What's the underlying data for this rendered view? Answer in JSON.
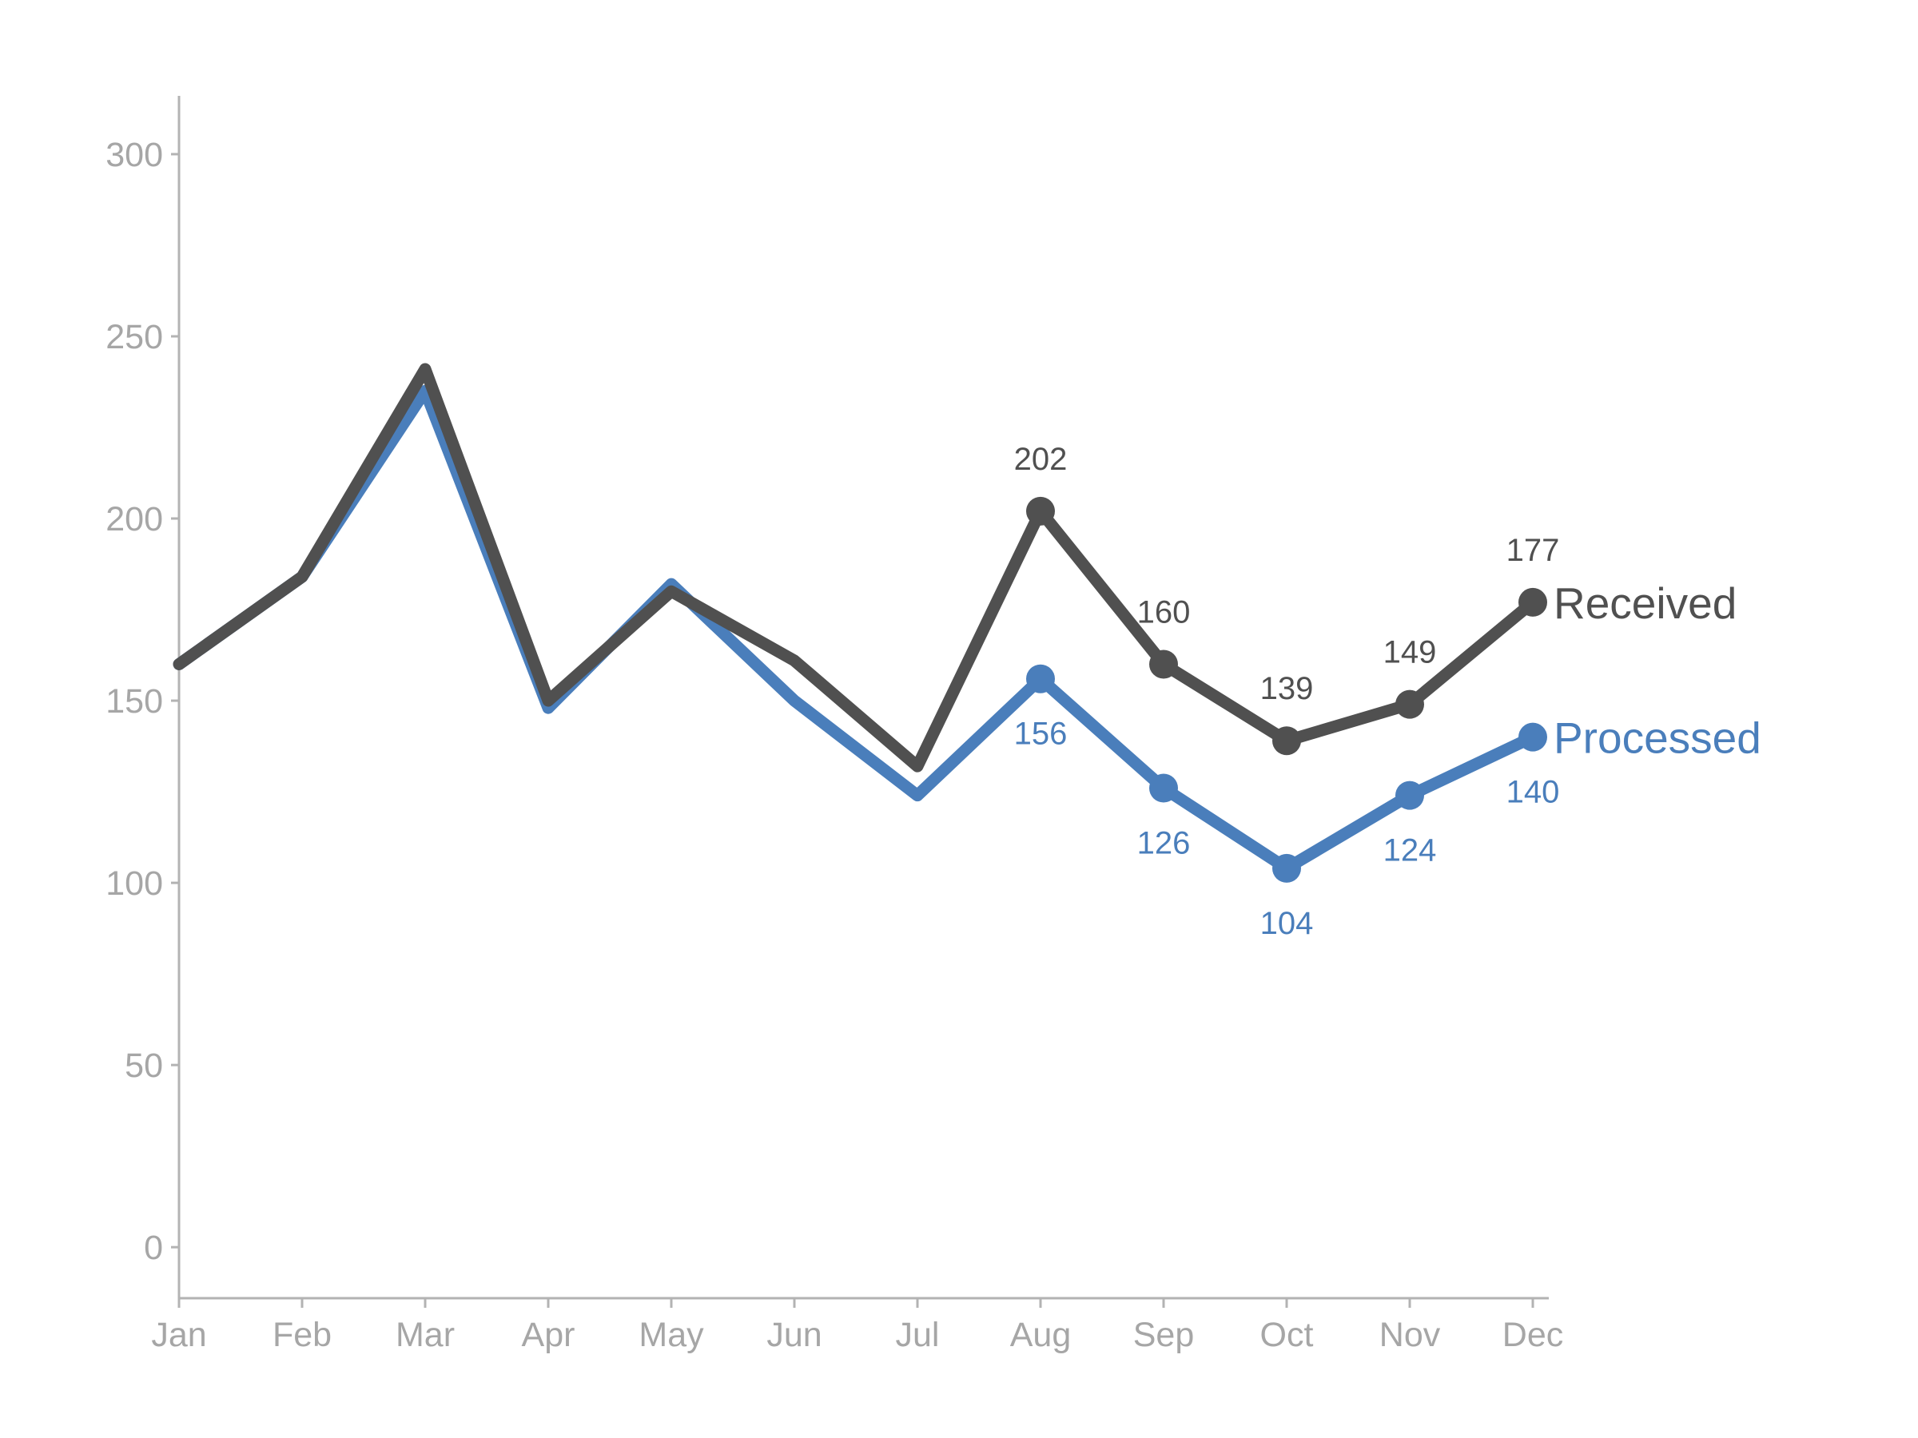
{
  "chart_data": {
    "type": "line",
    "categories": [
      "Jan",
      "Feb",
      "Mar",
      "Apr",
      "May",
      "Jun",
      "Jul",
      "Aug",
      "Sep",
      "Oct",
      "Nov",
      "Dec"
    ],
    "yticks": [
      "0",
      "50",
      "100",
      "150",
      "200",
      "250",
      "300"
    ],
    "ylim": [
      -14,
      316
    ],
    "grid": false,
    "legend": "direct labels at line ends",
    "series": [
      {
        "name": "Received",
        "color": "#505050",
        "values": [
          160,
          184,
          241,
          150,
          180,
          161,
          132,
          202,
          160,
          139,
          149,
          177
        ],
        "labels": [
          "",
          "",
          "",
          "",
          "",
          "",
          "",
          "202",
          "160",
          "139",
          "149",
          "177"
        ],
        "label_position": "above"
      },
      {
        "name": "Processed",
        "color": "#4a7ebb",
        "values": [
          160,
          184,
          235,
          148,
          182,
          150,
          124,
          156,
          126,
          104,
          124,
          140
        ],
        "labels": [
          "",
          "",
          "",
          "",
          "",
          "",
          "",
          "156",
          "126",
          "104",
          "124",
          "140"
        ],
        "label_position": "below"
      }
    ],
    "axis_color": "#b3b3b3",
    "tick_label_color": "#a6a6a6"
  }
}
